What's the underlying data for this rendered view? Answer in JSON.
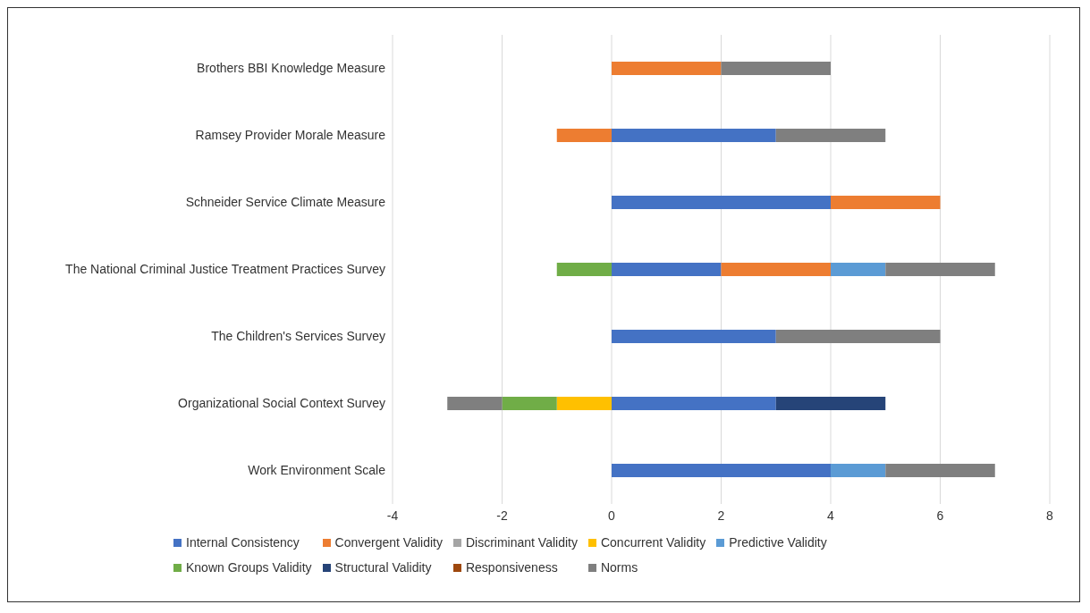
{
  "chart_data": {
    "type": "bar",
    "orientation": "horizontal",
    "stacked": true,
    "categories": [
      "Brothers BBI Knowledge Measure",
      "Ramsey Provider Morale Measure",
      "Schneider Service Climate Measure",
      "The National Criminal Justice Treatment Practices Survey",
      "The Children's Services Survey",
      "Organizational Social Context Survey",
      "Work Environment Scale"
    ],
    "series": [
      {
        "name": "Internal Consistency",
        "color": "#4472c4",
        "values": [
          null,
          3,
          4,
          2,
          3,
          3,
          4
        ]
      },
      {
        "name": "Convergent Validity",
        "color": "#ed7d31",
        "values": [
          2,
          -1,
          2,
          2,
          null,
          null,
          null
        ]
      },
      {
        "name": "Discriminant Validity",
        "color": "#a5a5a5",
        "values": [
          null,
          null,
          null,
          null,
          null,
          null,
          null
        ]
      },
      {
        "name": "Concurrent Validity",
        "color": "#ffc000",
        "values": [
          null,
          null,
          null,
          null,
          null,
          -1,
          null
        ]
      },
      {
        "name": "Predictive Validity",
        "color": "#5b9bd5",
        "values": [
          null,
          null,
          null,
          1,
          null,
          null,
          1
        ]
      },
      {
        "name": "Known Groups Validity",
        "color": "#70ad47",
        "values": [
          null,
          null,
          null,
          -1,
          null,
          -1,
          null
        ]
      },
      {
        "name": "Structural Validity",
        "color": "#264478",
        "values": [
          null,
          null,
          null,
          null,
          null,
          2,
          null
        ]
      },
      {
        "name": "Responsiveness",
        "color": "#9e480e",
        "values": [
          null,
          null,
          null,
          null,
          null,
          null,
          null
        ]
      },
      {
        "name": "Norms",
        "color": "#7f7f7f",
        "values": [
          2,
          2,
          null,
          2,
          3,
          -1,
          2
        ]
      }
    ],
    "xlim": [
      -4,
      8
    ],
    "xticks": [
      -4,
      -2,
      0,
      2,
      4,
      6,
      8
    ],
    "grid": "x",
    "legend": "bottom"
  }
}
